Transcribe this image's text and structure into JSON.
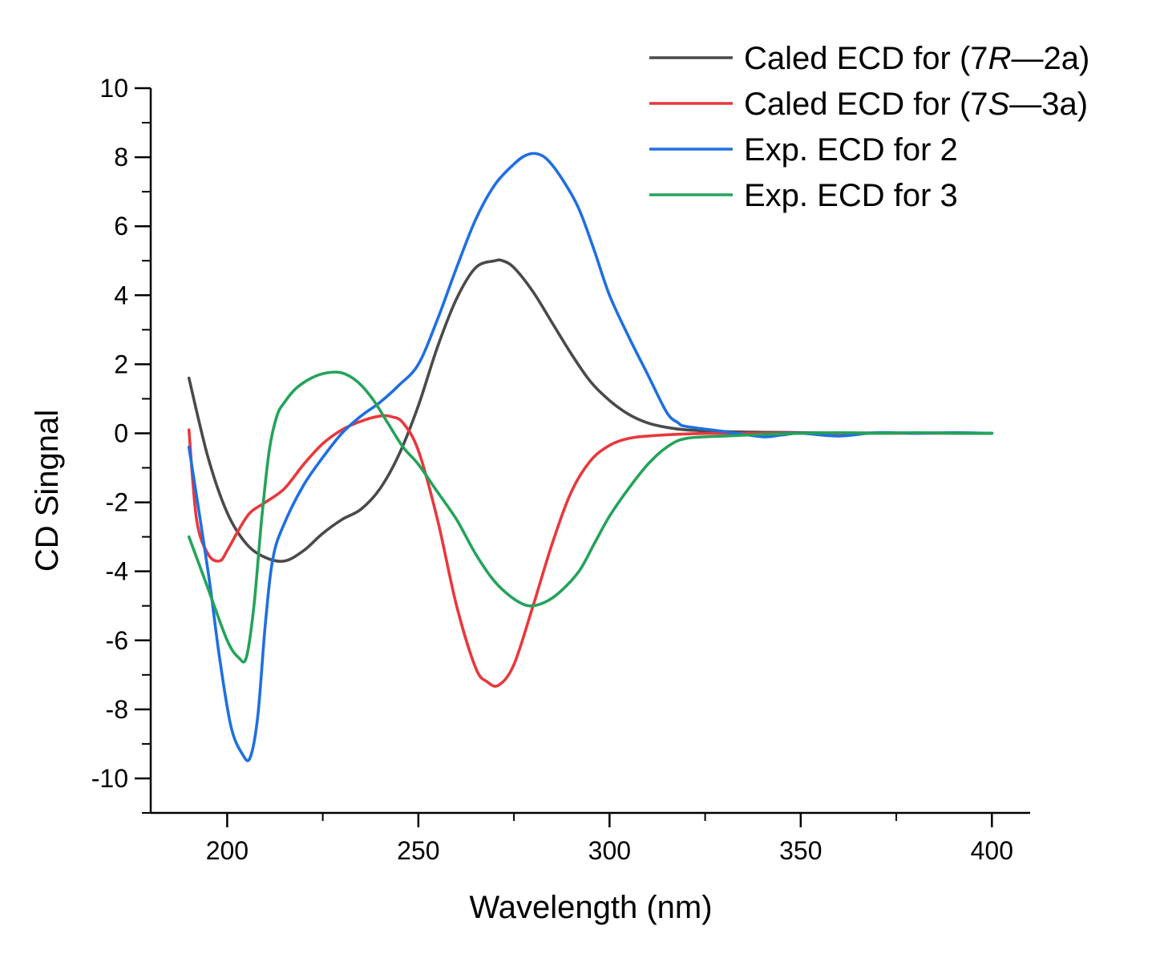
{
  "chart_data": {
    "type": "line",
    "title": "",
    "xlabel": "Wavelength (nm)",
    "ylabel": "CD Singnal",
    "xlim": [
      180,
      410
    ],
    "ylim": [
      -11,
      10
    ],
    "x_ticks": [
      200,
      250,
      300,
      350,
      400
    ],
    "y_ticks": [
      10,
      8,
      6,
      4,
      2,
      0,
      -2,
      -4,
      -6,
      -8,
      -10
    ],
    "grid": false,
    "legend_position": "top-right",
    "series": [
      {
        "name": "Caled ECD for (7R—2a)",
        "legend_parts": [
          "Caled ECD for (7",
          "R",
          "—2a)"
        ],
        "color": "#4a4a4a",
        "x": [
          190,
          195,
          200,
          205,
          210,
          215,
          220,
          225,
          230,
          235,
          240,
          245,
          250,
          255,
          260,
          265,
          270,
          272,
          275,
          280,
          285,
          290,
          295,
          300,
          305,
          310,
          315,
          320,
          330,
          340,
          350,
          360,
          380,
          400
        ],
        "y": [
          1.6,
          -0.7,
          -2.3,
          -3.2,
          -3.6,
          -3.7,
          -3.4,
          -2.9,
          -2.5,
          -2.2,
          -1.6,
          -0.6,
          0.8,
          2.5,
          3.9,
          4.8,
          5.0,
          5.0,
          4.8,
          4.1,
          3.2,
          2.3,
          1.5,
          0.95,
          0.55,
          0.3,
          0.17,
          0.1,
          0.05,
          0.03,
          0.02,
          0.01,
          0.01,
          0.0
        ]
      },
      {
        "name": "Caled ECD for (7S—3a)",
        "legend_parts": [
          "Caled ECD for (7",
          "S",
          "—3a)"
        ],
        "color": "#e8383d",
        "x": [
          190,
          192,
          195,
          198,
          200,
          203,
          206,
          210,
          215,
          220,
          225,
          230,
          235,
          240,
          243,
          246,
          250,
          255,
          260,
          265,
          268,
          271,
          275,
          280,
          285,
          290,
          295,
          300,
          305,
          310,
          320,
          330,
          350,
          400
        ],
        "y": [
          0.1,
          -2.5,
          -3.5,
          -3.7,
          -3.4,
          -2.8,
          -2.3,
          -2.0,
          -1.6,
          -0.9,
          -0.3,
          0.1,
          0.35,
          0.5,
          0.48,
          0.3,
          -0.5,
          -2.5,
          -5.0,
          -6.8,
          -7.2,
          -7.3,
          -6.7,
          -5.0,
          -3.2,
          -1.7,
          -0.8,
          -0.35,
          -0.15,
          -0.08,
          -0.02,
          0.0,
          0.0,
          0.0
        ]
      },
      {
        "name": "Exp. ECD for 2",
        "legend_parts": [
          "Exp. ECD for 2"
        ],
        "color": "#1f6fe0",
        "x": [
          190,
          195,
          198,
          201,
          204,
          206,
          208,
          210,
          212,
          215,
          220,
          225,
          230,
          235,
          240,
          245,
          250,
          255,
          260,
          265,
          270,
          275,
          278,
          281,
          284,
          288,
          292,
          296,
          300,
          305,
          310,
          315,
          318,
          320,
          330,
          340,
          345,
          350,
          360,
          370,
          380,
          390,
          400
        ],
        "y": [
          -0.4,
          -4.0,
          -6.5,
          -8.5,
          -9.3,
          -9.4,
          -8.2,
          -5.5,
          -3.6,
          -2.6,
          -1.5,
          -0.7,
          0.0,
          0.5,
          0.9,
          1.4,
          2.0,
          3.3,
          4.8,
          6.2,
          7.2,
          7.8,
          8.05,
          8.1,
          7.9,
          7.3,
          6.5,
          5.3,
          4.0,
          2.8,
          1.7,
          0.6,
          0.3,
          0.2,
          0.05,
          -0.1,
          -0.05,
          0.0,
          -0.08,
          0.02,
          0.0,
          0.02,
          0.0
        ]
      },
      {
        "name": "Exp. ECD for 3",
        "legend_parts": [
          "Exp. ECD for 3"
        ],
        "color": "#24a35a",
        "x": [
          190,
          195,
          200,
          203,
          205,
          207,
          209,
          211,
          213,
          215,
          218,
          222,
          226,
          230,
          234,
          238,
          242,
          246,
          250,
          255,
          260,
          265,
          270,
          275,
          279,
          283,
          287,
          292,
          296,
          300,
          305,
          310,
          315,
          320,
          330,
          340,
          350,
          360,
          370,
          380,
          390,
          400
        ],
        "y": [
          -3.0,
          -4.5,
          -6.0,
          -6.5,
          -6.5,
          -5.0,
          -2.5,
          -0.5,
          0.5,
          0.9,
          1.3,
          1.6,
          1.75,
          1.75,
          1.5,
          1.0,
          0.3,
          -0.4,
          -0.9,
          -1.7,
          -2.5,
          -3.5,
          -4.3,
          -4.8,
          -5.0,
          -4.9,
          -4.6,
          -4.0,
          -3.2,
          -2.4,
          -1.6,
          -0.9,
          -0.4,
          -0.15,
          -0.08,
          -0.03,
          0.0,
          0.02,
          0.0,
          0.02,
          0.0,
          0.0
        ]
      }
    ]
  }
}
